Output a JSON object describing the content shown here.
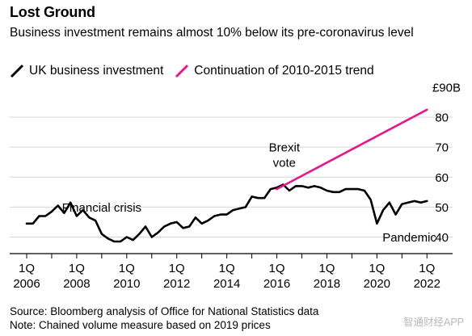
{
  "header": {
    "title": "Lost Ground",
    "subtitle": "Business investment remains almost 10% below its pre-coronavirus level"
  },
  "footer": {
    "source": "Source: Bloomberg analysis of Office for National Statistics data",
    "note": "Note: Chained volume measure based on 2019 prices",
    "watermark": "智通财经APP"
  },
  "colors": {
    "uk_line": "#000000",
    "trend_line": "#e0198c",
    "grid": "#d6d6d6"
  },
  "chart_data": {
    "type": "line",
    "unit_label": "£90B",
    "ylim": [
      35,
      90
    ],
    "yticks": [
      40,
      50,
      60,
      70,
      80
    ],
    "xlim": [
      2006,
      2022.25
    ],
    "xticks": [
      {
        "x": 2006,
        "q": "1Q",
        "year": "2006"
      },
      {
        "x": 2007,
        "q": "1Q",
        "year": ""
      },
      {
        "x": 2008,
        "q": "1Q",
        "year": "2008"
      },
      {
        "x": 2009,
        "q": "1Q",
        "year": ""
      },
      {
        "x": 2010,
        "q": "1Q",
        "year": "2010"
      },
      {
        "x": 2011,
        "q": "1Q",
        "year": ""
      },
      {
        "x": 2012,
        "q": "1Q",
        "year": "2012"
      },
      {
        "x": 2013,
        "q": "1Q",
        "year": ""
      },
      {
        "x": 2014,
        "q": "1Q",
        "year": "2014"
      },
      {
        "x": 2015,
        "q": "1Q",
        "year": ""
      },
      {
        "x": 2016,
        "q": "1Q",
        "year": "2016"
      },
      {
        "x": 2017,
        "q": "1Q",
        "year": ""
      },
      {
        "x": 2018,
        "q": "1Q",
        "year": "2018"
      },
      {
        "x": 2019,
        "q": "1Q",
        "year": ""
      },
      {
        "x": 2020,
        "q": "1Q",
        "year": "2020"
      },
      {
        "x": 2021,
        "q": "1Q",
        "year": ""
      },
      {
        "x": 2022,
        "q": "1Q",
        "year": "2022"
      }
    ],
    "grid": true,
    "series": [
      {
        "name": "UK business investment",
        "x": [
          2006.0,
          2006.25,
          2006.5,
          2006.75,
          2007.0,
          2007.25,
          2007.5,
          2007.75,
          2008.0,
          2008.25,
          2008.5,
          2008.75,
          2009.0,
          2009.25,
          2009.5,
          2009.75,
          2010.0,
          2010.25,
          2010.5,
          2010.75,
          2011.0,
          2011.25,
          2011.5,
          2011.75,
          2012.0,
          2012.25,
          2012.5,
          2012.75,
          2013.0,
          2013.25,
          2013.5,
          2013.75,
          2014.0,
          2014.25,
          2014.5,
          2014.75,
          2015.0,
          2015.25,
          2015.5,
          2015.75,
          2016.0,
          2016.25,
          2016.5,
          2016.75,
          2017.0,
          2017.25,
          2017.5,
          2017.75,
          2018.0,
          2018.25,
          2018.5,
          2018.75,
          2019.0,
          2019.25,
          2019.5,
          2019.75,
          2020.0,
          2020.25,
          2020.5,
          2020.75,
          2021.0,
          2021.25,
          2021.5,
          2021.75,
          2022.0
        ],
        "values": [
          44.5,
          44.5,
          47.0,
          47.0,
          48.5,
          50.5,
          48.0,
          51.5,
          47.0,
          49.0,
          46.5,
          45.5,
          41.0,
          39.5,
          38.5,
          38.5,
          40.0,
          39.0,
          41.0,
          43.5,
          40.0,
          41.5,
          43.5,
          44.5,
          45.0,
          43.0,
          43.5,
          46.5,
          44.5,
          45.5,
          47.0,
          47.5,
          47.5,
          49.0,
          49.5,
          50.0,
          53.5,
          53.0,
          53.0,
          56.0,
          56.5,
          57.5,
          55.5,
          57.0,
          57.0,
          56.5,
          57.0,
          56.5,
          55.5,
          55.0,
          55.0,
          56.0,
          56.0,
          56.0,
          55.5,
          52.5,
          44.5,
          49.0,
          51.5,
          47.5,
          51.0,
          51.5,
          52.0,
          51.5,
          52.0
        ]
      },
      {
        "name": "Continuation of 2010-2015 trend",
        "x": [
          2016.0,
          2022.0
        ],
        "values": [
          56.0,
          82.5
        ]
      }
    ],
    "annotations": [
      {
        "text": "Financial crisis",
        "x": 2009.0,
        "y": 48.5
      },
      {
        "text": "Brexit",
        "x": 2016.3,
        "y": 68.5
      },
      {
        "text": "vote",
        "x": 2016.3,
        "y": 63.5
      },
      {
        "text": "Pandemic",
        "x": 2021.3,
        "y": 38.5
      }
    ]
  }
}
